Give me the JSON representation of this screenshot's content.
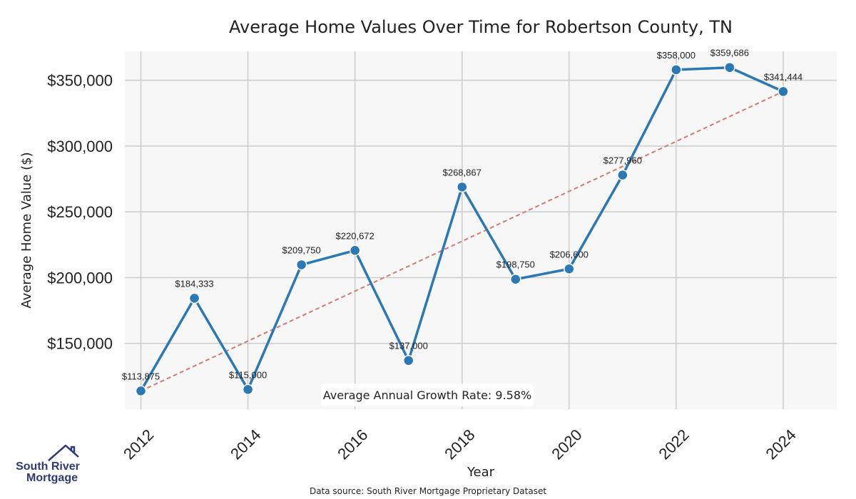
{
  "chart_data": {
    "type": "line",
    "title": "Average Home Values Over Time for Robertson County, TN",
    "xlabel": "Year",
    "ylabel": "Average Home Value ($)",
    "x": [
      2012,
      2013,
      2014,
      2015,
      2016,
      2017,
      2018,
      2019,
      2020,
      2021,
      2022,
      2023,
      2024
    ],
    "values": [
      113875,
      184333,
      115000,
      209750,
      220672,
      137000,
      268867,
      198750,
      206600,
      277960,
      358000,
      359686,
      341444
    ],
    "data_labels": [
      "$113,875",
      "$184,333",
      "$115,000",
      "$209,750",
      "$220,672",
      "$137,000",
      "$268,867",
      "$198,750",
      "$206,600",
      "$277,960",
      "$358,000",
      "$359,686",
      "$341,444"
    ],
    "xticks": [
      "2012",
      "2014",
      "2016",
      "2018",
      "2020",
      "2022",
      "2024"
    ],
    "yticks": [
      150000,
      200000,
      250000,
      300000,
      350000
    ],
    "ytick_labels": [
      "$150,000",
      "$200,000",
      "$250,000",
      "$300,000",
      "$350,000"
    ],
    "xlim": [
      2011.7,
      2025.0
    ],
    "ylim": [
      100000,
      372000
    ],
    "trendline": {
      "start": 113875,
      "end": 341444
    },
    "annotation": "Average Annual Growth Rate: 9.58%",
    "grid": true,
    "colors": {
      "line": "#2a78b4",
      "trend": "#d27a76",
      "plot_bg": "#f7f7f7",
      "grid": "#cccccc"
    }
  },
  "footer": {
    "source": "Data source: South River Mortgage Proprietary Dataset"
  },
  "logo": {
    "line1": "South River",
    "line2": "Mortgage",
    "icon": "house-roof-icon",
    "color": "#2f3a7a"
  }
}
